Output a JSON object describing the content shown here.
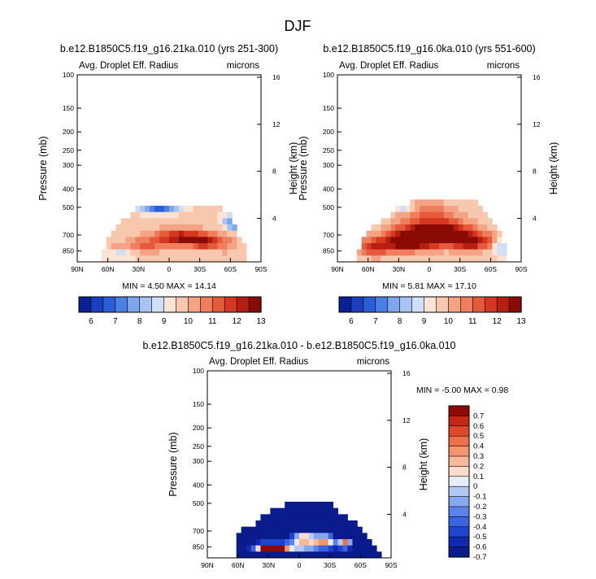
{
  "page": {
    "title": "DJF"
  },
  "chart_data": [
    {
      "type": "heatmap",
      "id": "left",
      "title": "b.e12.B1850C5.f19_g16.21ka.010 (yrs 251-300)",
      "left_label": "Avg. Droplet Eff. Radius",
      "right_label": "microns",
      "xlabel": "",
      "ylabel": "Pressure (mb)",
      "y2label": "Height (km)",
      "xticks": [
        "90N",
        "60N",
        "30N",
        "0",
        "30S",
        "60S",
        "90S"
      ],
      "yticks": [
        "100",
        "150",
        "200",
        "250",
        "300",
        "400",
        "500",
        "700",
        "850"
      ],
      "y2ticks": [
        "16",
        "12",
        "8",
        "4"
      ],
      "stats": "MIN =   4.50   MAX =  14.14",
      "min": 4.5,
      "max": 14.14,
      "field": {
        "centers": [
          {
            "lat": -10,
            "p": 725,
            "v": 12.8,
            "w": 22,
            "h": 70
          },
          {
            "lat": -35,
            "p": 760,
            "v": 12.3,
            "w": 14,
            "h": 70
          },
          {
            "lat": 25,
            "p": 800,
            "v": 11.2,
            "w": 20,
            "h": 80
          },
          {
            "lat": 50,
            "p": 850,
            "v": 11.0,
            "w": 9,
            "h": 60
          },
          {
            "lat": -55,
            "p": 760,
            "v": 10.6,
            "w": 12,
            "h": 110
          },
          {
            "lat": 10,
            "p": 580,
            "v": 9.8,
            "w": 30,
            "h": 90
          }
        ],
        "cold": [
          {
            "lat": 10,
            "p": 500,
            "v": 6.6,
            "w": 18,
            "h": 40
          },
          {
            "lat": -65,
            "p": 600,
            "v": 7.0,
            "w": 12,
            "h": 60
          },
          {
            "lat": 48,
            "p": 880,
            "v": 8.5,
            "w": 14,
            "h": 60
          }
        ]
      },
      "mask": [
        {
          "lat": -90,
          "pmin": 1000
        },
        {
          "lat": -80,
          "pmin": 1000
        },
        {
          "lat": -72,
          "pmin": 760
        },
        {
          "lat": -62,
          "pmin": 560
        },
        {
          "lat": -45,
          "pmin": 480
        },
        {
          "lat": -20,
          "pmin": 480
        },
        {
          "lat": 0,
          "pmin": 480
        },
        {
          "lat": 20,
          "pmin": 480
        },
        {
          "lat": 35,
          "pmin": 520
        },
        {
          "lat": 50,
          "pmin": 620
        },
        {
          "lat": 60,
          "pmin": 720
        },
        {
          "lat": 70,
          "pmin": 1000
        },
        {
          "lat": 90,
          "pmin": 1000
        }
      ]
    },
    {
      "type": "heatmap",
      "id": "right",
      "title": "b.e12.B1850C5.f19_g16.0ka.010 (yrs 551-600)",
      "left_label": "Avg. Droplet Eff. Radius",
      "right_label": "microns",
      "xlabel": "",
      "ylabel": "Pressure (mb)",
      "y2label": "Height (km)",
      "xticks": [
        "90N",
        "60N",
        "30N",
        "0",
        "30S",
        "60S",
        "90S"
      ],
      "yticks": [
        "100",
        "150",
        "200",
        "250",
        "300",
        "400",
        "500",
        "700",
        "850"
      ],
      "y2ticks": [
        "16",
        "12",
        "8",
        "4"
      ],
      "stats": "MIN =   5.81   MAX =  17.10",
      "min": 5.81,
      "max": 17.1,
      "field": {
        "centers": [
          {
            "lat": -5,
            "p": 690,
            "v": 14.5,
            "w": 30,
            "h": 110
          },
          {
            "lat": 25,
            "p": 760,
            "v": 13.0,
            "w": 22,
            "h": 90
          },
          {
            "lat": -40,
            "p": 760,
            "v": 12.8,
            "w": 14,
            "h": 90
          },
          {
            "lat": 55,
            "p": 820,
            "v": 11.8,
            "w": 16,
            "h": 90
          },
          {
            "lat": 5,
            "p": 520,
            "v": 10.6,
            "w": 30,
            "h": 60
          },
          {
            "lat": -60,
            "p": 760,
            "v": 10.8,
            "w": 8,
            "h": 80
          }
        ],
        "cold": [
          {
            "lat": -70,
            "p": 820,
            "v": 8.5,
            "w": 8,
            "h": 80
          },
          {
            "lat": 25,
            "p": 500,
            "v": 8.8,
            "w": 10,
            "h": 30
          }
        ]
      },
      "mask": [
        {
          "lat": -90,
          "pmin": 1000
        },
        {
          "lat": -78,
          "pmin": 1000
        },
        {
          "lat": -72,
          "pmin": 720
        },
        {
          "lat": -65,
          "pmin": 600
        },
        {
          "lat": -45,
          "pmin": 470
        },
        {
          "lat": -20,
          "pmin": 470
        },
        {
          "lat": 0,
          "pmin": 470
        },
        {
          "lat": 20,
          "pmin": 470
        },
        {
          "lat": 35,
          "pmin": 520
        },
        {
          "lat": 55,
          "pmin": 640
        },
        {
          "lat": 65,
          "pmin": 720
        },
        {
          "lat": 75,
          "pmin": 1000
        },
        {
          "lat": 90,
          "pmin": 1000
        }
      ]
    },
    {
      "type": "heatmap",
      "id": "diff",
      "title": "b.e12.B1850C5.f19_g16.21ka.010 - b.e12.B1850C5.f19_g16.0ka.010",
      "left_label": "Avg. Droplet Eff. Radius",
      "right_label": "microns",
      "xlabel": "",
      "ylabel": "Pressure (mb)",
      "y2label": "Height (km)",
      "xticks": [
        "90N",
        "60N",
        "30N",
        "0",
        "30S",
        "60S",
        "90S"
      ],
      "yticks": [
        "100",
        "150",
        "200",
        "250",
        "300",
        "400",
        "500",
        "700",
        "850"
      ],
      "y2ticks": [
        "16",
        "12",
        "8",
        "4"
      ],
      "stats": "MIN =  -5.00   MAX =   0.98",
      "min": -5.0,
      "max": 0.98,
      "field": {
        "base": -0.9,
        "centers": [
          {
            "lat": 33,
            "p": 860,
            "v": 0.6,
            "w": 8,
            "h": 40
          },
          {
            "lat": 20,
            "p": 870,
            "v": 0.3,
            "w": 8,
            "h": 40
          },
          {
            "lat": -5,
            "p": 770,
            "v": 0.6,
            "w": 12,
            "h": 40
          },
          {
            "lat": -25,
            "p": 780,
            "v": 0.5,
            "w": 10,
            "h": 40
          },
          {
            "lat": -45,
            "p": 820,
            "v": 0.5,
            "w": 6,
            "h": 40
          },
          {
            "lat": 5,
            "p": 850,
            "v": 0.0,
            "w": 40,
            "h": 50
          }
        ],
        "cold": []
      },
      "mask": [
        {
          "lat": -90,
          "pmin": 1000
        },
        {
          "lat": -82,
          "pmin": 1000
        },
        {
          "lat": -78,
          "pmin": 880
        },
        {
          "lat": -68,
          "pmin": 740
        },
        {
          "lat": -50,
          "pmin": 600
        },
        {
          "lat": -30,
          "pmin": 500
        },
        {
          "lat": 10,
          "pmin": 500
        },
        {
          "lat": 25,
          "pmin": 540
        },
        {
          "lat": 45,
          "pmin": 640
        },
        {
          "lat": 60,
          "pmin": 700
        },
        {
          "lat": 65,
          "pmin": 1000
        },
        {
          "lat": 90,
          "pmin": 1000
        }
      ]
    }
  ],
  "colorbar_abs": {
    "labels": [
      "6",
      "7",
      "8",
      "9",
      "10",
      "11",
      "12",
      "13"
    ],
    "levels": [
      5.5,
      6,
      6.5,
      7,
      7.5,
      8,
      8.5,
      9,
      9.5,
      10,
      10.5,
      11,
      11.5,
      12,
      12.5,
      13,
      13.5
    ],
    "colors": [
      "#0a2196",
      "#1c3fbf",
      "#2a5ed9",
      "#4a7fe6",
      "#7ea6ef",
      "#a8c4f3",
      "#cfdff6",
      "#fbe4d6",
      "#f8c8ae",
      "#f4a385",
      "#f07e5d",
      "#e55a3a",
      "#d43820",
      "#b61f10",
      "#8a0a04"
    ]
  },
  "colorbar_diff": {
    "labels": [
      "0.7",
      "0.6",
      "0.5",
      "0.4",
      "0.3",
      "0.2",
      "0.1",
      "0",
      "-0.1",
      "-0.2",
      "-0.3",
      "-0.4",
      "-0.5",
      "-0.6",
      "-0.7"
    ],
    "levels": [
      -0.75,
      -0.65,
      -0.55,
      -0.45,
      -0.35,
      -0.25,
      -0.15,
      -0.05,
      0.05,
      0.15,
      0.25,
      0.35,
      0.45,
      0.55,
      0.65,
      0.75
    ],
    "colors": [
      "#0a1c8c",
      "#1029b0",
      "#1e45d0",
      "#3a64e0",
      "#5a84ea",
      "#86a8f0",
      "#b2c9f5",
      "#e8eef8",
      "#fbdccc",
      "#f8b89a",
      "#f49570",
      "#ef7048",
      "#e0482a",
      "#c42814",
      "#8f0a04"
    ]
  }
}
